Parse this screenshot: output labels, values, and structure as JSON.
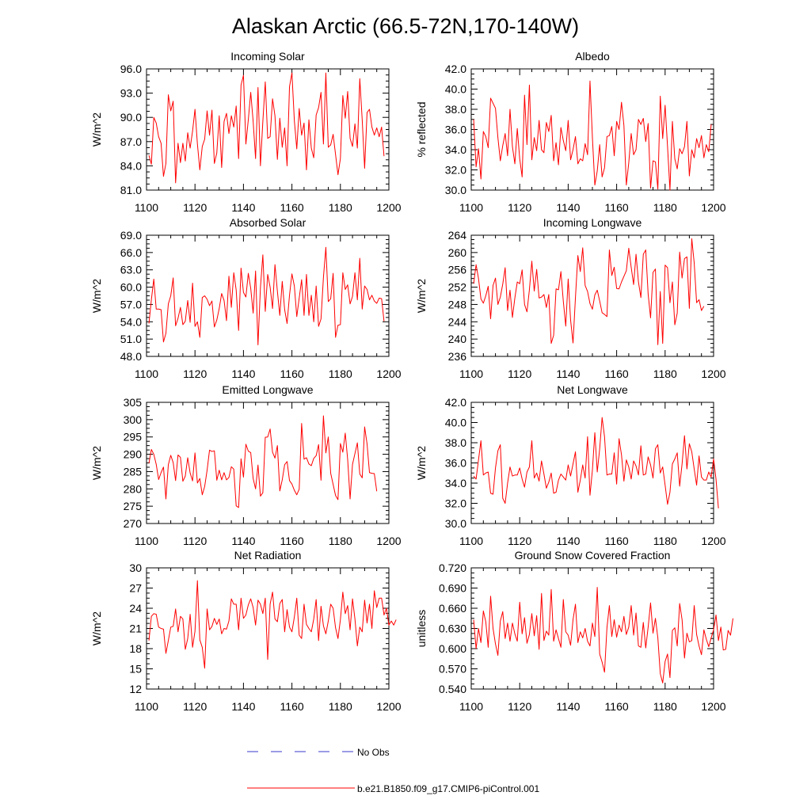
{
  "page": {
    "title": "Alaskan Arctic (66.5-72N,170-140W)"
  },
  "colors": {
    "model": "#ff0000",
    "obs": "#3a3acc",
    "axis": "#000000",
    "background": "#ffffff"
  },
  "legend": {
    "obs_label": "No Obs",
    "model_label": "b.e21.B1850.f09_g17.CMIP6-piControl.001"
  },
  "chart_data": [
    {
      "type": "line",
      "title": "Incoming Solar",
      "ylabel": "W/m^2",
      "xlim": [
        1100,
        1200
      ],
      "xticks": [
        1100,
        1120,
        1140,
        1160,
        1180,
        1200
      ],
      "ylim": [
        81,
        96
      ],
      "yticks": [
        "81.0",
        "84.0",
        "87.0",
        "90.0",
        "93.0",
        "96.0"
      ],
      "x_start": 1101,
      "series": [
        {
          "name": "b.e21.B1850.f09_g17.CMIP6-piControl.001",
          "values": [
            85.3,
            84.2,
            90.0,
            89.3,
            87.6,
            86.8,
            82.7,
            84.3,
            92.8,
            90.8,
            92.0,
            81.9,
            86.8,
            84.4,
            86.8,
            84.6,
            88.1,
            86.2,
            88.3,
            91.0,
            86.7,
            83.5,
            86.4,
            87.3,
            90.8,
            87.8,
            90.9,
            84.3,
            85.6,
            90.2,
            83.8,
            89.5,
            90.5,
            88.0,
            90.2,
            88.8,
            91.4,
            84.9,
            94.0,
            95.2,
            86.7,
            89.7,
            93.1,
            89.5,
            84.9,
            93.7,
            84.0,
            89.5,
            94.4,
            87.4,
            87.6,
            92.3,
            90.2,
            84.8,
            89.9,
            86.3,
            88.7,
            84.0,
            93.8,
            95.5,
            89.6,
            86.1,
            91.1,
            87.8,
            89.3,
            83.5,
            89.7,
            86.2,
            85.0,
            90.3,
            91.2,
            93.1,
            86.7,
            95.5,
            86.3,
            86.6,
            87.9,
            85.4,
            82.9,
            84.9,
            92.7,
            89.9,
            93.2,
            87.4,
            86.4,
            89.2,
            86.2,
            94.8,
            89.7,
            83.7,
            90.6,
            91.0,
            88.8,
            87.8,
            88.7,
            87.6,
            88.8,
            85.2
          ]
        }
      ]
    },
    {
      "type": "line",
      "title": "Albedo",
      "ylabel": "% reflected",
      "xlim": [
        1100,
        1200
      ],
      "xticks": [
        1100,
        1120,
        1140,
        1160,
        1180,
        1200
      ],
      "ylim": [
        30,
        42
      ],
      "yticks": [
        "30.0",
        "32.0",
        "34.0",
        "36.0",
        "38.0",
        "40.0",
        "42.0"
      ],
      "x_start": 1101,
      "series": [
        {
          "name": "b.e21.B1850.f09_g17.CMIP6-piControl.001",
          "values": [
            37.0,
            32.3,
            34.1,
            31.1,
            35.8,
            35.3,
            34.2,
            39.1,
            38.6,
            38.1,
            35.2,
            32.9,
            34.4,
            35.6,
            33.4,
            38.0,
            34.3,
            32.6,
            36.1,
            33.1,
            31.3,
            39.4,
            34.5,
            40.4,
            33.0,
            35.2,
            33.9,
            36.9,
            34.0,
            33.7,
            36.7,
            35.8,
            37.4,
            32.9,
            34.7,
            32.5,
            36.2,
            34.9,
            33.9,
            36.9,
            33.0,
            34.0,
            35.3,
            32.6,
            33.1,
            32.9,
            34.6,
            33.5,
            40.8,
            35.2,
            30.5,
            31.9,
            34.5,
            31.3,
            32.2,
            35.3,
            35.4,
            36.3,
            33.4,
            36.8,
            36.0,
            38.7,
            36.4,
            30.5,
            32.7,
            35.6,
            33.5,
            34.0,
            37.0,
            36.5,
            37.1,
            34.8,
            36.6,
            30.2,
            32.9,
            32.8,
            30.1,
            39.3,
            35.1,
            38.4,
            34.3,
            30.0,
            36.8,
            33.1,
            32.1,
            34.1,
            33.6,
            34.3,
            36.8,
            31.4,
            34.0,
            33.2,
            35.1,
            34.2,
            35.4,
            33.2,
            34.5,
            33.8,
            36.5
          ]
        }
      ]
    },
    {
      "type": "line",
      "title": "Absorbed Solar",
      "ylabel": "W/m^2",
      "xlim": [
        1100,
        1200
      ],
      "xticks": [
        1100,
        1120,
        1140,
        1160,
        1180,
        1200
      ],
      "ylim": [
        48,
        69
      ],
      "yticks": [
        "48.0",
        "51.0",
        "54.0",
        "57.0",
        "60.0",
        "63.0",
        "66.0",
        "69.0"
      ],
      "x_start": 1101,
      "series": [
        {
          "name": "b.e21.B1850.f09_g17.CMIP6-piControl.001",
          "values": [
            53.7,
            57.8,
            61.4,
            56.2,
            56.2,
            56.1,
            50.5,
            52.0,
            57.1,
            58.5,
            61.6,
            53.3,
            54.6,
            56.5,
            53.5,
            54.1,
            57.7,
            53.9,
            60.7,
            53.2,
            54.0,
            51.3,
            58.2,
            58.5,
            57.9,
            56.8,
            57.6,
            53.1,
            54.3,
            56.3,
            58.9,
            57.7,
            54.2,
            61.9,
            56.5,
            62.5,
            59.5,
            52.5,
            63.3,
            59.1,
            58.3,
            62.4,
            59.8,
            55.5,
            62.8,
            50.0,
            59.9,
            65.6,
            55.8,
            62.2,
            60.0,
            56.3,
            63.9,
            59.3,
            55.1,
            61.0,
            56.1,
            53.7,
            58.6,
            62.3,
            60.2,
            54.9,
            58.1,
            61.3,
            55.1,
            62.2,
            55.1,
            58.6,
            54.0,
            60.2,
            53.2,
            54.5,
            61.7,
            66.9,
            57.5,
            58.0,
            62.4,
            51.3,
            53.4,
            53.5,
            62.5,
            59.6,
            60.4,
            57.1,
            58.4,
            62.5,
            57.8,
            65.0,
            56.2,
            60.2,
            59.6,
            57.8,
            58.6,
            57.6,
            57.2,
            58.1,
            58.0,
            54.1
          ]
        }
      ]
    },
    {
      "type": "line",
      "title": "Incoming Longwave",
      "ylabel": "W/m^2",
      "xlim": [
        1100,
        1200
      ],
      "xticks": [
        1100,
        1120,
        1140,
        1160,
        1180,
        1200
      ],
      "ylim": [
        236,
        264
      ],
      "yticks": [
        "236",
        "240",
        "244",
        "248",
        "252",
        "256",
        "260",
        "264"
      ],
      "x_start": 1101,
      "series": [
        {
          "name": "b.e21.B1850.f09_g17.CMIP6-piControl.001",
          "values": [
            252.8,
            257.2,
            254.0,
            249.3,
            248.3,
            250.0,
            252.2,
            244.7,
            252.4,
            254.1,
            248.0,
            249.7,
            252.7,
            256.5,
            246.6,
            251.3,
            245.0,
            249.5,
            253.2,
            252.8,
            256.0,
            248.0,
            246.3,
            251.4,
            258.0,
            251.1,
            256.1,
            249.5,
            249.7,
            250.3,
            247.3,
            250.3,
            239.0,
            240.9,
            251.6,
            251.4,
            255.6,
            248.7,
            243.0,
            253.9,
            244.4,
            239.1,
            249.6,
            259.3,
            255.6,
            261.1,
            252.4,
            251.0,
            248.2,
            246.9,
            250.2,
            251.3,
            248.8,
            246.1,
            245.7,
            245.2,
            260.6,
            254.7,
            256.6,
            251.7,
            251.6,
            253.2,
            254.5,
            255.8,
            261.0,
            256.6,
            252.6,
            259.6,
            253.2,
            249.6,
            259.6,
            260.6,
            250.4,
            244.9,
            255.4,
            256.2,
            238.7,
            251.0,
            239.0,
            257.1,
            256.5,
            248.4,
            253.2,
            243.3,
            246.0,
            260.1,
            254.1,
            258.6,
            259.0,
            247.1,
            263.2,
            257.6,
            248.4,
            249.1,
            246.6,
            247.6
          ]
        }
      ]
    },
    {
      "type": "line",
      "title": "Emitted Longwave",
      "ylabel": "W/m^2",
      "xlim": [
        1100,
        1200
      ],
      "xticks": [
        1100,
        1120,
        1140,
        1160,
        1180,
        1200
      ],
      "ylim": [
        270,
        305
      ],
      "yticks": [
        "270",
        "275",
        "280",
        "285",
        "290",
        "295",
        "300",
        "305"
      ],
      "x_start": 1101,
      "series": [
        {
          "name": "b.e21.B1850.f09_g17.CMIP6-piControl.001",
          "values": [
            287.4,
            291.4,
            290.0,
            287.1,
            282.7,
            284.7,
            286.3,
            277.1,
            287.0,
            289.7,
            287.6,
            282.4,
            289.8,
            289.1,
            282.2,
            283.7,
            289.0,
            284.6,
            282.3,
            290.4,
            281.7,
            283.0,
            278.3,
            280.7,
            285.4,
            291.2,
            290.8,
            291.0,
            282.5,
            285.4,
            282.6,
            284.7,
            282.6,
            283.3,
            286.4,
            285.7,
            275.1,
            274.6,
            288.7,
            283.4,
            292.9,
            290.9,
            290.5,
            283.0,
            280.0,
            286.9,
            277.9,
            278.9,
            294.9,
            295.0,
            297.3,
            290.6,
            288.9,
            292.5,
            279.4,
            282.6,
            287.0,
            287.9,
            282.4,
            281.4,
            279.6,
            278.3,
            279.9,
            298.9,
            288.6,
            289.0,
            287.2,
            286.7,
            288.8,
            289.6,
            292.8,
            282.5,
            301.1,
            290.4,
            295.0,
            284.5,
            281.3,
            278.1,
            276.9,
            293.1,
            290.6,
            296.1,
            288.5,
            277.1,
            287.1,
            290.2,
            293.3,
            284.3,
            283.2,
            297.9,
            293.0,
            284.7,
            284.5,
            284.4,
            279.3
          ]
        }
      ]
    },
    {
      "type": "line",
      "title": "Net Longwave",
      "ylabel": "W/m^2",
      "xlim": [
        1100,
        1200
      ],
      "xticks": [
        1100,
        1120,
        1140,
        1160,
        1180,
        1200
      ],
      "ylim": [
        30,
        42
      ],
      "yticks": [
        "30.0",
        "32.0",
        "34.0",
        "36.0",
        "38.0",
        "40.0",
        "42.0"
      ],
      "x_start": 1101,
      "series": [
        {
          "name": "b.e21.B1850.f09_g17.CMIP6-piControl.001",
          "values": [
            34.7,
            34.4,
            36.3,
            38.2,
            34.8,
            35.0,
            35.1,
            33.0,
            32.9,
            35.5,
            37.2,
            37.8,
            32.5,
            32.0,
            34.0,
            35.6,
            34.7,
            34.8,
            34.8,
            35.5,
            34.4,
            33.6,
            35.1,
            35.6,
            38.2,
            34.5,
            35.0,
            34.2,
            36.2,
            34.9,
            33.5,
            34.1,
            35.0,
            33.0,
            33.1,
            34.3,
            34.9,
            34.6,
            34.3,
            35.8,
            34.7,
            35.9,
            37.1,
            33.1,
            34.3,
            35.8,
            34.5,
            38.6,
            32.8,
            35.3,
            39.0,
            35.1,
            37.4,
            40.5,
            38.6,
            34.8,
            34.9,
            34.9,
            37.0,
            33.9,
            38.4,
            36.8,
            34.2,
            36.3,
            35.6,
            34.4,
            36.2,
            35.7,
            34.8,
            37.7,
            34.8,
            34.9,
            36.6,
            35.8,
            34.5,
            37.4,
            37.8,
            35.0,
            35.6,
            33.8,
            31.9,
            33.1,
            35.9,
            36.4,
            37.0,
            33.7,
            35.9,
            38.7,
            35.4,
            37.9,
            37.1,
            35.4,
            33.8,
            36.7,
            34.6,
            34.3,
            34.3,
            35.1,
            34.6,
            36.4,
            34.4,
            31.5
          ]
        }
      ]
    },
    {
      "type": "line",
      "title": "Net Radiation",
      "ylabel": "W/m^2",
      "xlim": [
        1100,
        1200
      ],
      "xticks": [
        1100,
        1120,
        1140,
        1160,
        1180,
        1200
      ],
      "ylim": [
        12,
        30
      ],
      "yticks": [
        "12",
        "15",
        "18",
        "21",
        "24",
        "27",
        "30"
      ],
      "x_start": 1101,
      "series": [
        {
          "name": "b.e21.B1850.f09_g17.CMIP6-piControl.001",
          "values": [
            19.2,
            22.8,
            23.2,
            23.1,
            21.2,
            21.0,
            20.9,
            17.3,
            19.2,
            21.2,
            21.3,
            23.9,
            20.5,
            22.8,
            22.4,
            17.9,
            19.5,
            23.1,
            18.2,
            20.6,
            28.1,
            19.3,
            18.2,
            15.1,
            23.9,
            20.8,
            21.3,
            22.5,
            21.6,
            22.4,
            20.2,
            21.0,
            20.9,
            22.1,
            25.4,
            24.6,
            24.6,
            20.8,
            25.5,
            22.5,
            23.0,
            24.5,
            25.4,
            24.1,
            21.5,
            25.2,
            24.6,
            23.2,
            25.5,
            16.4,
            24.6,
            26.4,
            22.4,
            22.0,
            24.7,
            25.3,
            20.5,
            23.8,
            21.2,
            20.5,
            22.7,
            25.5,
            20.0,
            19.5,
            24.6,
            21.6,
            21.0,
            20.5,
            22.4,
            25.3,
            19.2,
            24.3,
            21.4,
            20.2,
            22.1,
            24.6,
            24.0,
            21.1,
            19.5,
            22.3,
            26.4,
            23.2,
            24.4,
            20.8,
            25.4,
            22.4,
            18.4,
            21.2,
            20.5,
            25.2,
            21.8,
            24.6,
            21.0,
            26.6,
            24.1,
            25.5,
            25.5,
            23.0,
            24.0,
            21.5,
            22.1,
            21.5,
            22.3
          ]
        }
      ]
    },
    {
      "type": "line",
      "title": "Ground Snow Covered Fraction",
      "ylabel": "unitless",
      "xlim": [
        1100,
        1200
      ],
      "xticks": [
        1100,
        1120,
        1140,
        1160,
        1180,
        1200
      ],
      "ylim": [
        0.54,
        0.72
      ],
      "yticks": [
        "0.540",
        "0.570",
        "0.600",
        "0.630",
        "0.660",
        "0.690",
        "0.720"
      ],
      "x_start": 1101,
      "series": [
        {
          "name": "b.e21.B1850.f09_g17.CMIP6-piControl.001",
          "values": [
            0.643,
            0.6,
            0.63,
            0.609,
            0.656,
            0.64,
            0.602,
            0.678,
            0.63,
            0.607,
            0.59,
            0.641,
            0.655,
            0.615,
            0.638,
            0.611,
            0.638,
            0.622,
            0.611,
            0.669,
            0.622,
            0.646,
            0.608,
            0.621,
            0.652,
            0.619,
            0.649,
            0.599,
            0.682,
            0.612,
            0.626,
            0.62,
            0.688,
            0.611,
            0.628,
            0.615,
            0.602,
            0.673,
            0.625,
            0.62,
            0.605,
            0.643,
            0.666,
            0.609,
            0.625,
            0.616,
            0.63,
            0.611,
            0.604,
            0.638,
            0.618,
            0.691,
            0.592,
            0.58,
            0.565,
            0.631,
            0.664,
            0.618,
            0.643,
            0.617,
            0.635,
            0.625,
            0.648,
            0.621,
            0.632,
            0.664,
            0.62,
            0.653,
            0.604,
            0.602,
            0.639,
            0.601,
            0.632,
            0.668,
            0.623,
            0.645,
            0.616,
            0.563,
            0.549,
            0.581,
            0.592,
            0.557,
            0.627,
            0.631,
            0.604,
            0.667,
            0.643,
            0.586,
            0.623,
            0.61,
            0.612,
            0.664,
            0.621,
            0.604,
            0.591,
            0.628,
            0.614,
            0.603,
            0.616,
            0.628,
            0.65,
            0.612,
            0.632,
            0.598,
            0.599,
            0.627,
            0.62,
            0.645
          ]
        }
      ]
    }
  ]
}
